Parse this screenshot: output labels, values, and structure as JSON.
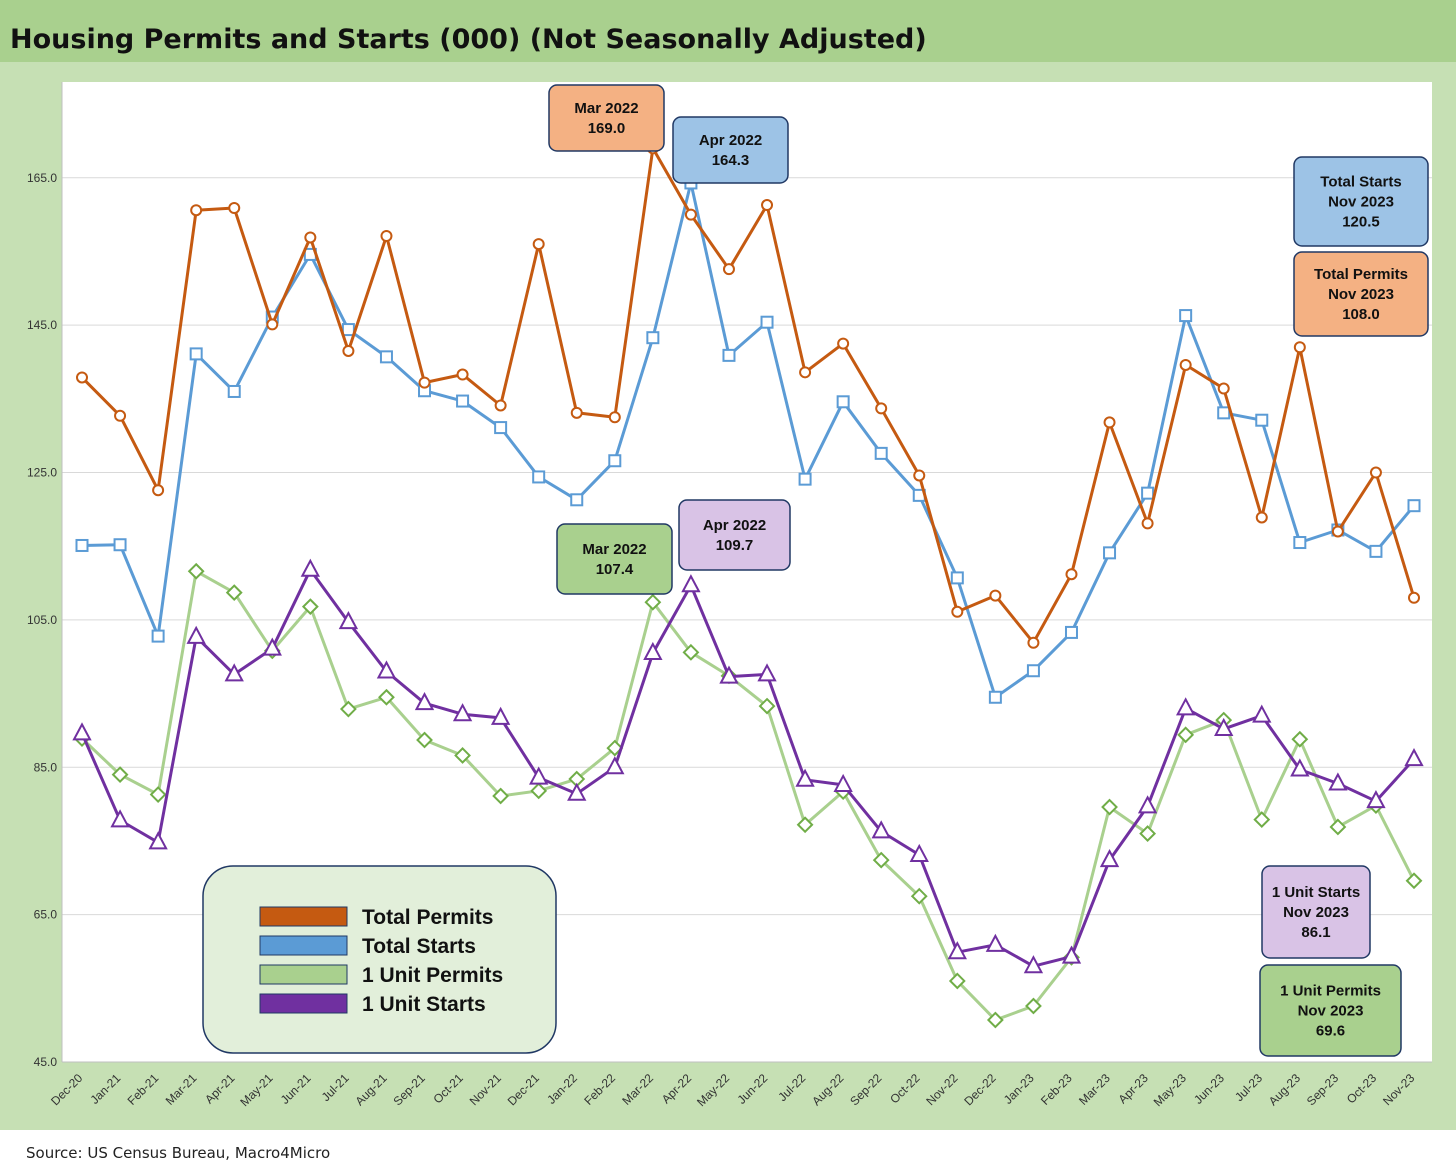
{
  "title": "Housing Permits and Starts (000) (Not Seasonally Adjusted)",
  "source": "Source: US Census Bureau, Macro4Micro",
  "colors": {
    "total_permits": "#c55a11",
    "total_starts": "#5b9bd5",
    "unit_permits": "#a9d08e",
    "unit_permits_marker": "#70ad47",
    "unit_starts": "#7030a0",
    "title_bar": "#a9d08e",
    "chart_border": "#c6e0b4"
  },
  "legend": {
    "items": [
      "Total Permits",
      "Total Starts",
      "1 Unit Permits",
      "1 Unit Starts"
    ]
  },
  "callouts": {
    "mar22_permits": [
      "Mar 2022",
      "169.0"
    ],
    "apr22_starts": [
      "Apr 2022",
      "164.3"
    ],
    "mar22_unit_permits": [
      "Mar 2022",
      "107.4"
    ],
    "apr22_unit_starts": [
      "Apr 2022",
      "109.7"
    ],
    "nov23_starts": [
      "Total Starts",
      "Nov 2023",
      "120.5"
    ],
    "nov23_permits": [
      "Total Permits",
      "Nov 2023",
      "108.0"
    ],
    "nov23_unit_starts": [
      "1 Unit Starts",
      "Nov 2023",
      "86.1"
    ],
    "nov23_unit_permits": [
      "1 Unit Permits",
      "Nov 2023",
      "69.6"
    ]
  },
  "chart_data": {
    "type": "line",
    "categories": [
      "Dec-20",
      "Jan-21",
      "Feb-21",
      "Mar-21",
      "Apr-21",
      "May-21",
      "Jun-21",
      "Jul-21",
      "Aug-21",
      "Sep-21",
      "Oct-21",
      "Nov-21",
      "Dec-21",
      "Jan-22",
      "Feb-22",
      "Mar-22",
      "Apr-22",
      "May-22",
      "Jun-22",
      "Jul-22",
      "Aug-22",
      "Sep-22",
      "Oct-22",
      "Nov-22",
      "Dec-22",
      "Jan-23",
      "Feb-23",
      "Mar-23",
      "Apr-23",
      "May-23",
      "Jun-23",
      "Jul-23",
      "Aug-23",
      "Sep-23",
      "Oct-23",
      "Nov-23"
    ],
    "yticks": [
      "45.0",
      "65.0",
      "85.0",
      "105.0",
      "125.0",
      "145.0",
      "165.0"
    ],
    "ylim": [
      45,
      178
    ],
    "grid": true,
    "legend_position": "bottom-left",
    "series": [
      {
        "name": "Total Permits",
        "marker": "circle",
        "values": [
          137.9,
          132.7,
          122.6,
          160.6,
          160.9,
          145.1,
          156.9,
          141.5,
          157.1,
          137.2,
          138.3,
          134.1,
          156.0,
          133.1,
          132.5,
          169.0,
          160.0,
          152.6,
          161.3,
          138.6,
          142.5,
          133.7,
          124.6,
          106.1,
          108.3,
          101.9,
          111.2,
          131.8,
          118.1,
          139.6,
          136.4,
          118.9,
          142.0,
          117.0,
          125.0,
          108.0
        ]
      },
      {
        "name": "Total Starts",
        "marker": "square",
        "values": [
          115.1,
          115.2,
          102.8,
          141.1,
          136.0,
          146.1,
          154.6,
          144.4,
          140.7,
          136.1,
          134.7,
          131.1,
          124.4,
          121.3,
          126.6,
          143.3,
          164.3,
          140.9,
          145.4,
          124.1,
          134.6,
          127.6,
          121.9,
          110.7,
          94.5,
          98.1,
          103.3,
          114.1,
          122.2,
          146.3,
          133.1,
          132.1,
          115.5,
          117.2,
          114.3,
          120.5
        ]
      },
      {
        "name": "1 Unit Permits",
        "marker": "diamond",
        "values": [
          88.9,
          84.0,
          81.3,
          111.6,
          108.7,
          100.8,
          106.8,
          92.9,
          94.5,
          88.7,
          86.6,
          81.1,
          81.8,
          83.4,
          87.6,
          107.4,
          100.6,
          97.4,
          93.3,
          77.2,
          81.7,
          72.4,
          67.5,
          56.0,
          50.7,
          52.6,
          59.2,
          79.6,
          76.0,
          89.4,
          91.4,
          77.9,
          88.8,
          76.9,
          79.8,
          69.6
        ]
      },
      {
        "name": "1 Unit Starts",
        "marker": "triangle",
        "values": [
          89.6,
          77.8,
          74.8,
          102.7,
          97.6,
          101.1,
          111.8,
          104.7,
          98.0,
          93.7,
          92.2,
          91.7,
          83.6,
          81.4,
          85.0,
          100.5,
          109.7,
          97.3,
          97.6,
          83.3,
          82.6,
          76.3,
          73.1,
          59.9,
          60.9,
          58.0,
          59.3,
          72.4,
          79.7,
          93.0,
          90.2,
          92.0,
          84.7,
          82.8,
          80.4,
          86.1
        ]
      }
    ]
  }
}
